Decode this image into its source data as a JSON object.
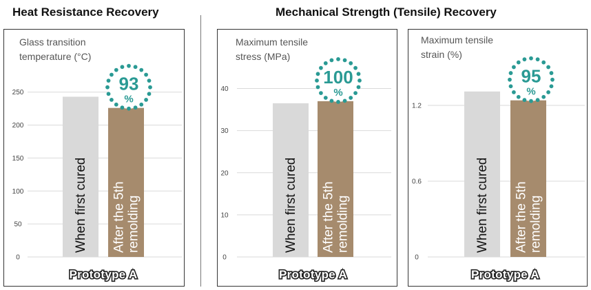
{
  "headings": {
    "heat": "Heat Resistance Recovery",
    "mechanical": "Mechanical Strength (Tensile) Recovery"
  },
  "colors": {
    "first_cured": "#d9d9d9",
    "remolded": "#a68b6d",
    "accent": "#2a9a94",
    "gridline": "#d9d9d9"
  },
  "chart_data": [
    {
      "type": "bar",
      "section": "Heat Resistance Recovery",
      "ylabel_lines": [
        "Glass transition",
        "temperature (°C)"
      ],
      "ylim": [
        0,
        280
      ],
      "yticks": [
        "0",
        "50",
        "100",
        "150",
        "200",
        "250"
      ],
      "ytick_values": [
        0,
        50,
        100,
        150,
        200,
        250
      ],
      "category": "Prototype A",
      "series": [
        {
          "name": "When first cured",
          "label_lines": [
            "When first cured"
          ],
          "value": 243
        },
        {
          "name": "After the 5th remolding",
          "label_lines": [
            "After the 5th",
            "remolding"
          ],
          "value": 226
        }
      ],
      "recovery": {
        "value": "93",
        "unit": "%"
      }
    },
    {
      "type": "bar",
      "section": "Mechanical Strength (Tensile) Recovery",
      "ylabel_lines": [
        "Maximum tensile",
        "stress (MPa)"
      ],
      "ylim": [
        0,
        45
      ],
      "yticks": [
        "0",
        "10",
        "20",
        "30",
        "40"
      ],
      "ytick_values": [
        0,
        10,
        20,
        30,
        40
      ],
      "category": "Prototype A",
      "series": [
        {
          "name": "When first cured",
          "label_lines": [
            "When first cured"
          ],
          "value": 36.5
        },
        {
          "name": "After the 5th remolding",
          "label_lines": [
            "After the 5th",
            "remolding"
          ],
          "value": 37
        }
      ],
      "recovery": {
        "value": "100",
        "unit": "%"
      }
    },
    {
      "type": "bar",
      "section": "Mechanical Strength (Tensile) Recovery",
      "ylabel_lines": [
        "Maximum tensile",
        "strain (%)"
      ],
      "ylim": [
        0,
        1.5
      ],
      "yticks": [
        "0",
        "0.6",
        "1.2"
      ],
      "ytick_values": [
        0,
        0.6,
        1.2
      ],
      "category": "Prototype A",
      "series": [
        {
          "name": "When first cured",
          "label_lines": [
            "When first cured"
          ],
          "value": 1.31
        },
        {
          "name": "After the 5th remolding",
          "label_lines": [
            "After the 5th",
            "remolding"
          ],
          "value": 1.24
        }
      ],
      "recovery": {
        "value": "95",
        "unit": "%"
      }
    }
  ]
}
